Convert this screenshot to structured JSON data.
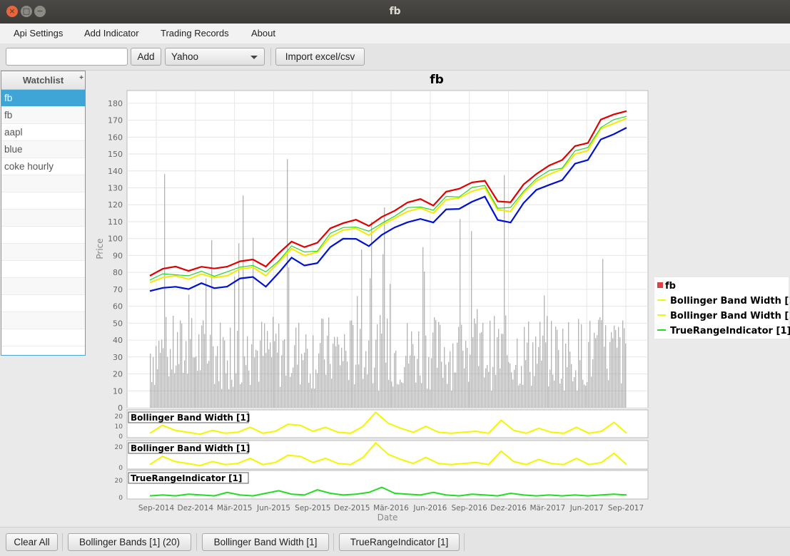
{
  "window": {
    "title": "fb"
  },
  "menu": {
    "items": [
      "Api Settings",
      "Add Indicator",
      "Trading Records",
      "About"
    ]
  },
  "toolbar": {
    "symbol_value": "",
    "add_label": "Add",
    "source_selected": "Yahoo",
    "import_label": "Import excel/csv"
  },
  "watchlist": {
    "header": "Watchlist",
    "plus": "+",
    "items": [
      "fb",
      "fb",
      "aapl",
      "blue",
      "coke hourly"
    ]
  },
  "bottom": {
    "clear_label": "Clear All",
    "indicator_buttons": [
      "Bollinger Bands [1] (20)",
      "Bollinger Band Width [1]",
      "TrueRangeIndicator [1]"
    ]
  },
  "colors": {
    "upper": "#e00000",
    "middle": "#f5e900",
    "lower": "#0010d0",
    "width": "#f5f500",
    "truerange": "#22dd22",
    "volume": "#9a9a9a",
    "selection": "#3fa5d6"
  },
  "chart_data": [
    {
      "type": "line",
      "title": "fb",
      "xlabel": "Date",
      "ylabel": "Price",
      "ylim": [
        0,
        185
      ],
      "yticks": [
        0,
        10,
        20,
        30,
        40,
        50,
        60,
        70,
        80,
        90,
        100,
        110,
        120,
        130,
        140,
        150,
        160,
        170,
        180
      ],
      "xticks": [
        "Sep-2014",
        "Dez-2014",
        "Mär-2015",
        "Jun-2015",
        "Sep-2015",
        "Dez-2015",
        "Mär-2016",
        "Jun-2016",
        "Sep-2016",
        "Dez-2016",
        "Mär-2017",
        "Jun-2017",
        "Sep-2017"
      ],
      "legend": [
        "fb",
        "Bollinger Band Width [1]",
        "Bollinger Band Width [1]",
        "TrueRangeIndicator [1]"
      ],
      "legend_position": "right",
      "grid": true,
      "price": {
        "x": [
          "Aug-2014",
          "Sep-2014",
          "Okt-2014",
          "Nov-2014",
          "Dez-2014",
          "Jan-2015",
          "Feb-2015",
          "Mär-2015",
          "Apr-2015",
          "Mai-2015",
          "Jun-2015",
          "Jul-2015",
          "Aug-2015",
          "Sep-2015",
          "Okt-2015",
          "Nov-2015",
          "Dez-2015",
          "Jan-2016",
          "Feb-2016",
          "Mär-2016",
          "Apr-2016",
          "Mai-2016",
          "Jun-2016",
          "Jul-2016",
          "Aug-2016",
          "Sep-2016",
          "Okt-2016",
          "Nov-2016",
          "Dez-2016",
          "Jan-2017",
          "Feb-2017",
          "Mär-2017",
          "Apr-2017",
          "Mai-2017",
          "Jun-2017",
          "Jul-2017",
          "Aug-2017",
          "Sep-2017"
        ],
        "values": [
          74,
          77,
          78,
          76,
          79,
          77,
          78,
          82,
          83,
          78,
          86,
          94,
          90,
          92,
          101,
          105,
          106,
          102,
          108,
          112,
          116,
          118,
          115,
          123,
          124,
          128,
          130,
          117,
          116,
          127,
          134,
          138,
          141,
          150,
          152,
          165,
          168,
          171
        ]
      },
      "volume_range": [
        10,
        183
      ],
      "series": [
        {
          "name": "Bollinger Bands upper",
          "color": "#e00000"
        },
        {
          "name": "Bollinger Bands middle",
          "color": "#f5e900"
        },
        {
          "name": "Bollinger Bands lower",
          "color": "#0010d0"
        }
      ]
    },
    {
      "type": "line",
      "title": "Bollinger Band Width [1]",
      "ylim": [
        0,
        25
      ],
      "yticks": [
        0,
        10,
        20
      ],
      "values": [
        3,
        11,
        6,
        4,
        2,
        6,
        3,
        4,
        9,
        3,
        5,
        12,
        11,
        5,
        9,
        4,
        3,
        10,
        24,
        13,
        8,
        4,
        10,
        4,
        3,
        4,
        5,
        3,
        16,
        6,
        3,
        8,
        4,
        3,
        9,
        3,
        5,
        14,
        3
      ]
    },
    {
      "type": "line",
      "title": "Bollinger Band Width [1]",
      "ylim": [
        0,
        25
      ],
      "yticks": [
        0,
        20
      ],
      "values": [
        3,
        11,
        6,
        4,
        2,
        6,
        3,
        4,
        9,
        3,
        5,
        12,
        11,
        5,
        9,
        4,
        3,
        10,
        24,
        13,
        8,
        4,
        10,
        4,
        3,
        4,
        5,
        3,
        16,
        6,
        3,
        8,
        4,
        3,
        9,
        3,
        5,
        14,
        3
      ]
    },
    {
      "type": "line",
      "title": "TrueRangeIndicator [1]",
      "ylim": [
        0,
        30
      ],
      "yticks": [
        0,
        20
      ],
      "values": [
        2,
        3,
        2,
        4,
        3,
        2,
        6,
        3,
        2,
        5,
        8,
        4,
        3,
        9,
        5,
        3,
        4,
        6,
        12,
        5,
        4,
        3,
        6,
        3,
        2,
        4,
        3,
        2,
        5,
        3,
        2,
        3,
        2,
        3,
        2,
        3,
        4,
        3
      ]
    }
  ]
}
